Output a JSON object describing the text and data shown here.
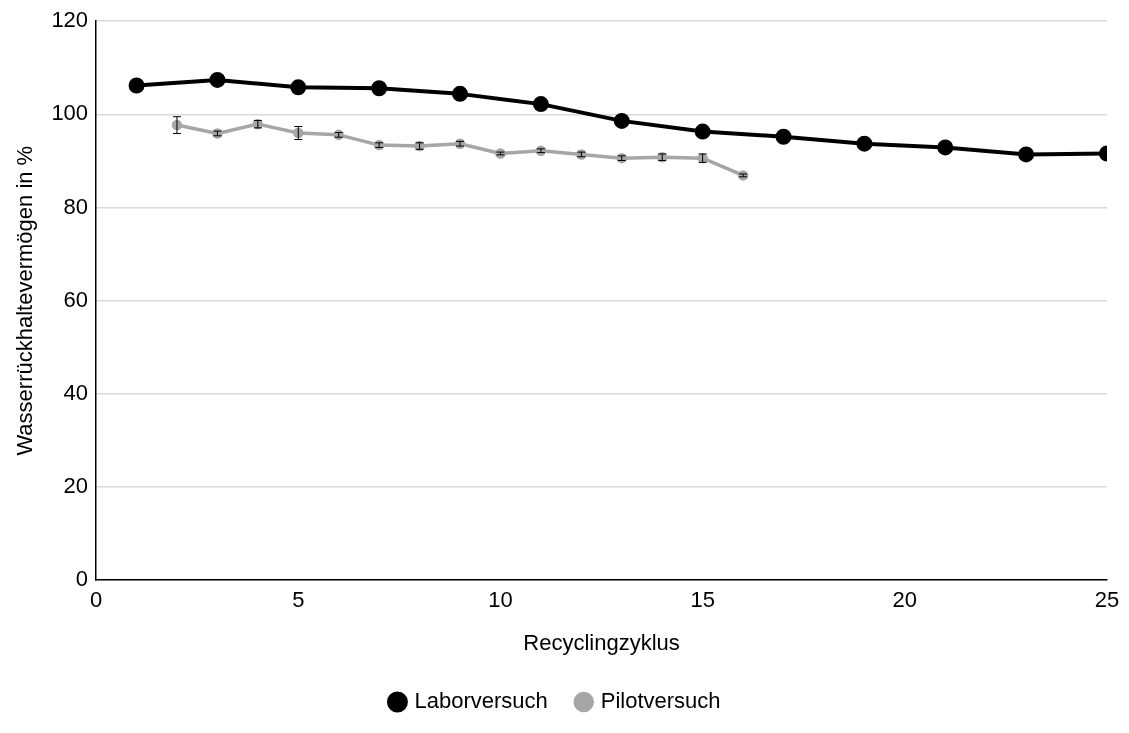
{
  "chart_data": {
    "type": "line",
    "xlabel": "Recyclingzyklus",
    "ylabel": "Wasserrückhaltevermögen in %",
    "xlim": [
      0,
      25
    ],
    "xticks": [
      0,
      5,
      10,
      15,
      20,
      25
    ],
    "ylim": [
      0,
      120
    ],
    "yticks": [
      0,
      20,
      40,
      60,
      80,
      100,
      120
    ],
    "grid": "y",
    "legend": "bottom",
    "marker": "circle",
    "line_style": "solid",
    "series": [
      {
        "name": "Laborversuch",
        "color": "#000000",
        "x": [
          1,
          3,
          5,
          7,
          9,
          11,
          13,
          15,
          17,
          19,
          21,
          23,
          25
        ],
        "values": [
          106.2,
          107.4,
          105.8,
          105.6,
          104.4,
          102.2,
          98.6,
          96.3,
          95.2,
          93.7,
          92.9,
          91.4,
          91.6
        ]
      },
      {
        "name": "Pilotversuch",
        "color": "#a6a6a6",
        "x": [
          2,
          3,
          4,
          5,
          6,
          7,
          8,
          9,
          10,
          11,
          12,
          13,
          14,
          15,
          16
        ],
        "values": [
          97.7,
          95.9,
          97.9,
          96.0,
          95.6,
          93.4,
          93.2,
          93.7,
          91.6,
          92.2,
          91.4,
          90.6,
          90.8,
          90.6,
          86.9
        ],
        "errors": [
          1.8,
          0.5,
          0.8,
          1.4,
          0.5,
          0.5,
          0.7,
          0.5,
          0.3,
          0.4,
          0.5,
          0.5,
          0.7,
          0.9,
          0.3
        ]
      }
    ]
  }
}
